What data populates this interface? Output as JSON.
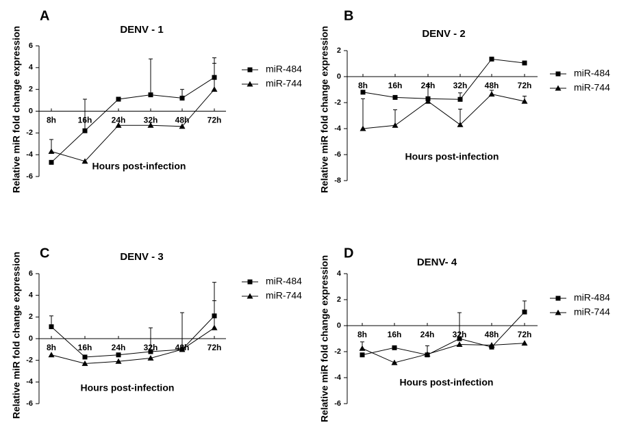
{
  "ylabel": "Relative miR fold change expression",
  "xlabel": "Hours post-infection",
  "chart_data": [
    {
      "panel": "A",
      "type": "line",
      "title": "DENV - 1",
      "categories": [
        "8h",
        "16h",
        "24h",
        "32h",
        "48h",
        "72h"
      ],
      "ylim": [
        -6,
        6
      ],
      "yticks": [
        -6,
        -4,
        -2,
        0,
        2,
        4,
        6
      ],
      "series": [
        {
          "name": "miR-484",
          "marker": "square",
          "values": [
            -4.7,
            -1.8,
            1.1,
            1.5,
            1.2,
            3.1
          ],
          "errors": [
            0,
            2.9,
            0,
            3.3,
            0.8,
            1.8
          ]
        },
        {
          "name": "miR-744",
          "marker": "triangle",
          "values": [
            -3.7,
            -4.6,
            -1.3,
            -1.3,
            -1.4,
            2.0
          ],
          "errors": [
            1.1,
            0,
            0,
            0,
            0,
            2.4
          ]
        }
      ]
    },
    {
      "panel": "B",
      "type": "line",
      "title": "DENV - 2",
      "categories": [
        "8h",
        "16h",
        "24h",
        "32h",
        "48h",
        "72h"
      ],
      "ylim": [
        -8,
        2
      ],
      "yticks": [
        -8,
        -6,
        -4,
        -2,
        0,
        2
      ],
      "series": [
        {
          "name": "miR-484",
          "marker": "square",
          "values": [
            -1.2,
            -1.6,
            -1.7,
            -1.75,
            1.35,
            1.05
          ],
          "errors": [
            0,
            0,
            0,
            0.5,
            0,
            0
          ]
        },
        {
          "name": "miR-744",
          "marker": "triangle",
          "values": [
            -4.0,
            -3.75,
            -1.9,
            -3.7,
            -1.35,
            -1.9
          ],
          "errors": [
            2.3,
            1.2,
            1.3,
            1.2,
            0.3,
            0.4
          ]
        }
      ]
    },
    {
      "panel": "C",
      "type": "line",
      "title": "DENV - 3",
      "categories": [
        "8h",
        "16h",
        "24h",
        "32h",
        "48h",
        "72h"
      ],
      "ylim": [
        -6,
        6
      ],
      "yticks": [
        -6,
        -4,
        -2,
        0,
        2,
        4,
        6
      ],
      "series": [
        {
          "name": "miR-484",
          "marker": "square",
          "values": [
            1.1,
            -1.7,
            -1.5,
            -1.2,
            -1.0,
            2.1
          ],
          "errors": [
            1.0,
            0,
            0,
            2.2,
            3.4,
            3.1
          ]
        },
        {
          "name": "miR-744",
          "marker": "triangle",
          "values": [
            -1.5,
            -2.3,
            -2.1,
            -1.8,
            -1.0,
            1.0
          ],
          "errors": [
            0,
            0,
            0,
            0,
            0,
            2.5
          ]
        }
      ]
    },
    {
      "panel": "D",
      "type": "line",
      "title": "DENV- 4",
      "categories": [
        "8h",
        "16h",
        "24h",
        "32h",
        "48h",
        "72h"
      ],
      "ylim": [
        -6,
        4
      ],
      "yticks": [
        -6,
        -4,
        -2,
        0,
        2,
        4
      ],
      "series": [
        {
          "name": "miR-484",
          "marker": "square",
          "values": [
            -2.25,
            -1.7,
            -2.25,
            -1.0,
            -1.65,
            1.05
          ],
          "errors": [
            0,
            0,
            0.7,
            2.0,
            0,
            0.85
          ]
        },
        {
          "name": "miR-744",
          "marker": "triangle",
          "values": [
            -1.75,
            -2.85,
            -2.2,
            -1.45,
            -1.5,
            -1.35
          ],
          "errors": [
            0.5,
            0,
            0,
            0,
            0,
            0
          ]
        }
      ]
    }
  ]
}
